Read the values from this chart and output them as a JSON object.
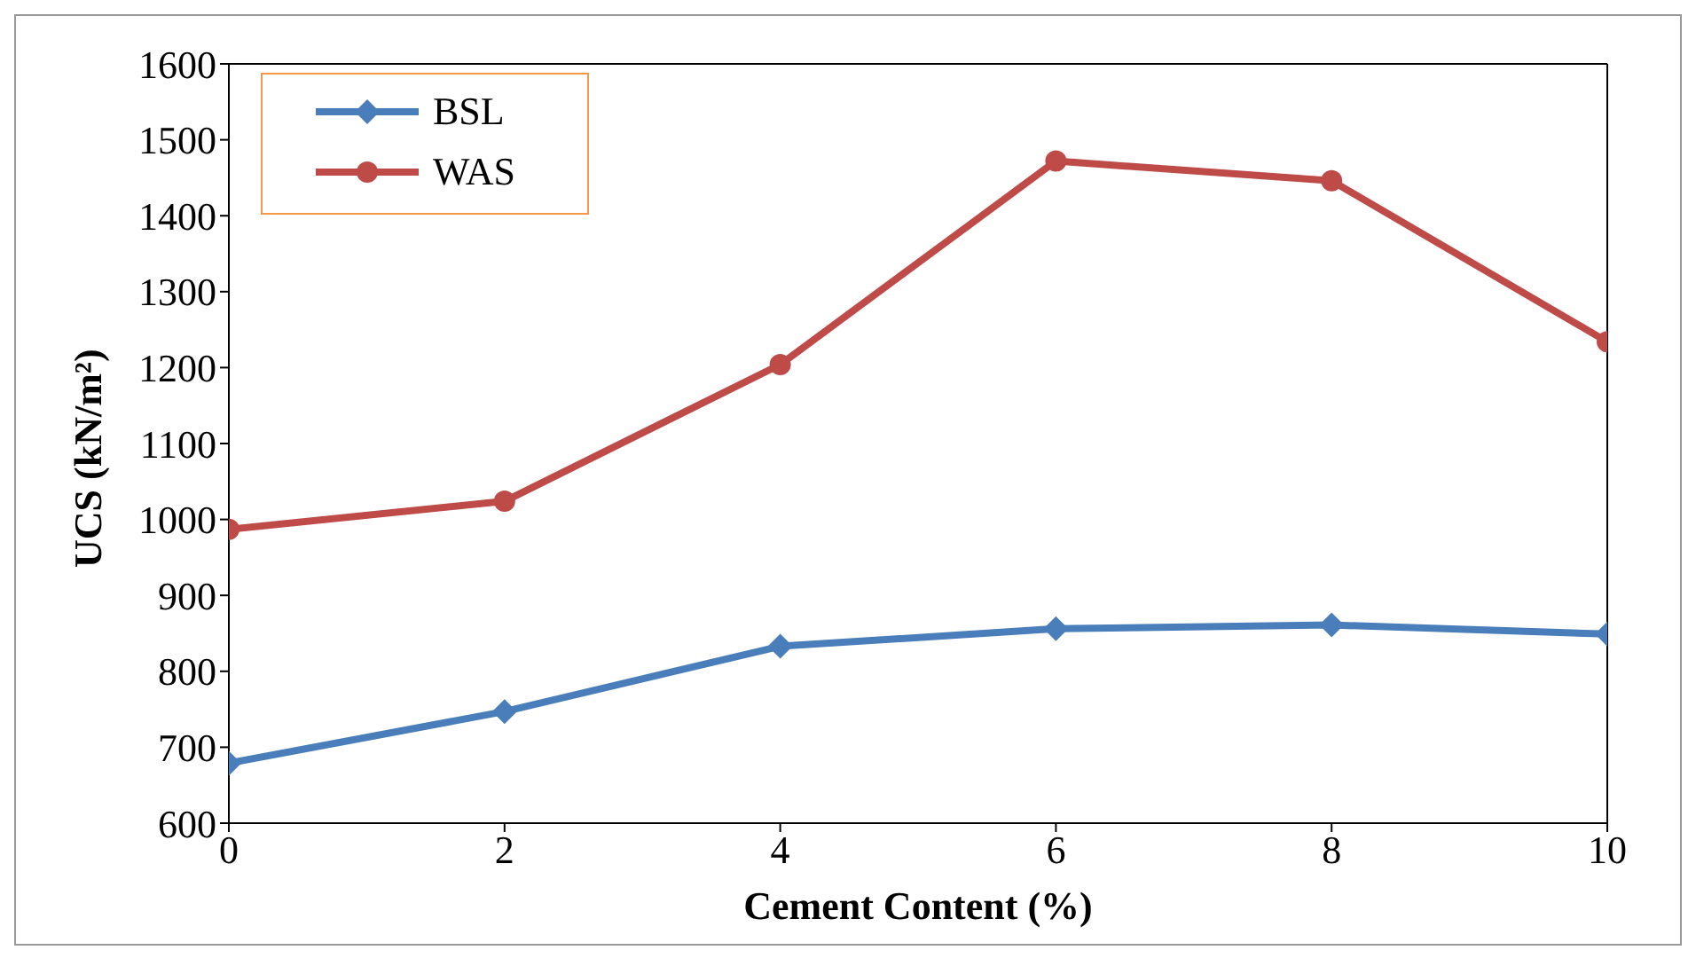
{
  "chart_data": {
    "type": "line",
    "xlabel": "Cement Content (%)",
    "ylabel": "UCS (kN/m²)",
    "x": [
      0,
      2,
      4,
      6,
      8,
      10
    ],
    "series": [
      {
        "name": "BSL",
        "color": "#4a7ebb",
        "marker": "diamond",
        "values": [
          679,
          747,
          833,
          856,
          861,
          849
        ]
      },
      {
        "name": "WAS",
        "color": "#be4b48",
        "marker": "circle",
        "values": [
          987,
          1024,
          1204,
          1472,
          1446,
          1234
        ]
      }
    ],
    "xlim": [
      0,
      10
    ],
    "xticks": [
      0,
      2,
      4,
      6,
      8,
      10
    ],
    "ylim": [
      600,
      1600
    ],
    "yticks": [
      600,
      700,
      800,
      900,
      1000,
      1100,
      1200,
      1300,
      1400,
      1500,
      1600
    ],
    "grid": false,
    "legend": "top left"
  }
}
